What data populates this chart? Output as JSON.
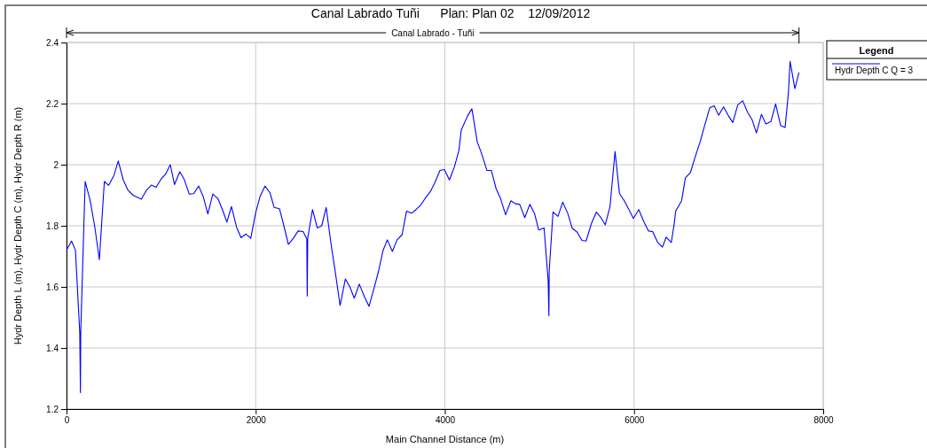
{
  "chart_data": {
    "type": "line",
    "title": "Canal Labrado Tuñi      Plan: Plan 02    12/09/2012",
    "xlabel": "Main Channel Distance (m)",
    "ylabel": "Hydr Depth L (m), Hydr Depth C (m), Hydr Depth R (m)",
    "legend_title": "Legend",
    "annotations": [
      "Canal Labrado - Tuñi"
    ],
    "legend": "right",
    "grid": true,
    "marker": "none",
    "line_style": "solid",
    "xlim": [
      0,
      8000
    ],
    "xticks": [
      0,
      2000,
      4000,
      6000,
      8000
    ],
    "ylim": [
      1.2,
      2.4
    ],
    "yticks": [
      1.2,
      1.4,
      1.6,
      1.8,
      2.0,
      2.2,
      2.4
    ],
    "series": [
      {
        "name": "Hydr Depth C Q = 3",
        "color": "#0000ff",
        "x": [
          0,
          53,
          94,
          140,
          147,
          150,
          197,
          250,
          297,
          347,
          400,
          444,
          500,
          547,
          600,
          647,
          703,
          791,
          844,
          897,
          947,
          1000,
          1047,
          1097,
          1141,
          1197,
          1244,
          1297,
          1344,
          1397,
          1447,
          1494,
          1547,
          1601,
          1648,
          1695,
          1744,
          1798,
          1845,
          1897,
          1948,
          2000,
          2047,
          2098,
          2151,
          2195,
          2251,
          2298,
          2345,
          2398,
          2448,
          2501,
          2540,
          2545,
          2550,
          2601,
          2651,
          2698,
          2745,
          2798,
          2845,
          2892,
          2948,
          2995,
          3042,
          3095,
          3149,
          3198,
          3252,
          3298,
          3345,
          3392,
          3445,
          3495,
          3548,
          3595,
          3648,
          3695,
          3745,
          3792,
          3845,
          3892,
          3948,
          3995,
          4048,
          4101,
          4148,
          4173,
          4239,
          4286,
          4342,
          4377,
          4398,
          4445,
          4492,
          4542,
          4589,
          4642,
          4698,
          4745,
          4792,
          4845,
          4898,
          4949,
          4992,
          5049,
          5092,
          5100,
          5103,
          5143,
          5196,
          5246,
          5299,
          5346,
          5399,
          5449,
          5493,
          5549,
          5602,
          5649,
          5696,
          5746,
          5799,
          5846,
          5893,
          5946,
          5993,
          6050,
          6103,
          6152,
          6197,
          6247,
          6300,
          6340,
          6394,
          6425,
          6440,
          6503,
          6543,
          6596,
          6643,
          6699,
          6746,
          6800,
          6847,
          6894,
          6947,
          6994,
          7044,
          7097,
          7149,
          7200,
          7247,
          7294,
          7347,
          7394,
          7447,
          7497,
          7550,
          7597,
          7632,
          7650,
          7700,
          7744
        ],
        "values": [
          1.72,
          1.75,
          1.72,
          1.45,
          1.254,
          1.45,
          1.945,
          1.882,
          1.8,
          1.689,
          1.945,
          1.932,
          1.964,
          2.012,
          1.95,
          1.918,
          1.9,
          1.887,
          1.916,
          1.933,
          1.926,
          1.953,
          1.969,
          2.0,
          1.935,
          1.977,
          1.952,
          1.904,
          1.905,
          1.93,
          1.894,
          1.839,
          1.904,
          1.889,
          1.853,
          1.812,
          1.863,
          1.795,
          1.761,
          1.773,
          1.759,
          1.843,
          1.897,
          1.93,
          1.908,
          1.86,
          1.856,
          1.8,
          1.739,
          1.759,
          1.783,
          1.781,
          1.757,
          1.57,
          1.76,
          1.853,
          1.793,
          1.8,
          1.86,
          1.737,
          1.641,
          1.539,
          1.626,
          1.6,
          1.563,
          1.609,
          1.568,
          1.536,
          1.597,
          1.65,
          1.718,
          1.754,
          1.716,
          1.754,
          1.771,
          1.848,
          1.841,
          1.853,
          1.868,
          1.89,
          1.911,
          1.94,
          1.981,
          1.984,
          1.95,
          1.993,
          2.046,
          2.113,
          2.159,
          2.183,
          2.075,
          2.046,
          2.027,
          1.981,
          1.981,
          1.921,
          1.889,
          1.836,
          1.882,
          1.872,
          1.87,
          1.827,
          1.87,
          1.839,
          1.786,
          1.793,
          1.62,
          1.505,
          1.65,
          1.845,
          1.831,
          1.877,
          1.841,
          1.792,
          1.779,
          1.752,
          1.75,
          1.807,
          1.845,
          1.827,
          1.803,
          1.863,
          2.043,
          1.906,
          1.884,
          1.853,
          1.824,
          1.853,
          1.814,
          1.783,
          1.781,
          1.747,
          1.73,
          1.763,
          1.745,
          1.807,
          1.848,
          1.882,
          1.957,
          1.974,
          2.022,
          2.075,
          2.128,
          2.186,
          2.193,
          2.162,
          2.189,
          2.162,
          2.138,
          2.196,
          2.209,
          2.172,
          2.148,
          2.104,
          2.165,
          2.133,
          2.141,
          2.199,
          2.128,
          2.122,
          2.235,
          2.338,
          2.249,
          2.302
        ]
      }
    ]
  }
}
